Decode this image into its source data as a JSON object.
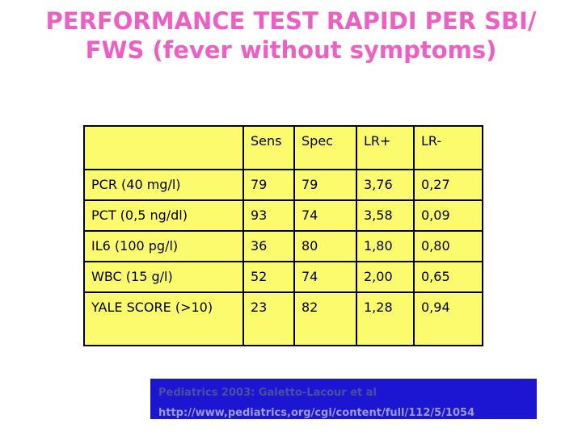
{
  "title": {
    "line1": "PERFORMANCE TEST RAPIDI PER SBI/",
    "line2": "FWS (fever without symptoms)"
  },
  "table": {
    "headers": {
      "col0": "",
      "sens": "Sens",
      "spec": "Spec",
      "lr_plus": "LR+",
      "lr_minus": "LR-"
    },
    "rows": [
      {
        "label": "PCR (40 mg/l)",
        "sens": "79",
        "spec": "79",
        "lr_plus": "3,76",
        "lr_minus": "0,27"
      },
      {
        "label": "PCT (0,5 ng/dl)",
        "sens": "93",
        "spec": "74",
        "lr_plus": "3,58",
        "lr_minus": "0,09"
      },
      {
        "label": "IL6 (100 pg/l)",
        "sens": "36",
        "spec": "80",
        "lr_plus": "1,80",
        "lr_minus": "0,80"
      },
      {
        "label": "WBC (15 g/l)",
        "sens": "52",
        "spec": "74",
        "lr_plus": "2,00",
        "lr_minus": "0,65"
      },
      {
        "label": "YALE SCORE (>10)",
        "sens": "23",
        "spec": "82",
        "lr_plus": "1,28",
        "lr_minus": "0,94"
      }
    ]
  },
  "footer": {
    "citation": "Pediatrics 2003: Galetto-Lacour et al",
    "url": "http://www,pediatrics,org/cgi/content/full/112/5/1054"
  },
  "colors": {
    "title_pink": "#ee5fc4",
    "table_yellow": "#fbfb6d",
    "table_border": "#000000",
    "table_text": "#000000",
    "footer_blue": "#1c16d2",
    "footer_citation_text": "#4b4f9f",
    "footer_url_text": "#9a99d2",
    "background": "#ffffff"
  },
  "chart_data": {
    "type": "table",
    "title": "PERFORMANCE TEST RAPIDI PER SBI/ FWS (fever without symptoms)",
    "columns": [
      "",
      "Sens",
      "Spec",
      "LR+",
      "LR-"
    ],
    "rows": [
      [
        "PCR (40 mg/l)",
        79,
        79,
        "3,76",
        "0,27"
      ],
      [
        "PCT (0,5 ng/dl)",
        93,
        74,
        "3,58",
        "0,09"
      ],
      [
        "IL6 (100 pg/l)",
        36,
        80,
        "1,80",
        "0,80"
      ],
      [
        "WBC (15 g/l)",
        52,
        74,
        "2,00",
        "0,65"
      ],
      [
        "YALE SCORE (>10)",
        23,
        82,
        "1,28",
        "0,94"
      ]
    ]
  }
}
